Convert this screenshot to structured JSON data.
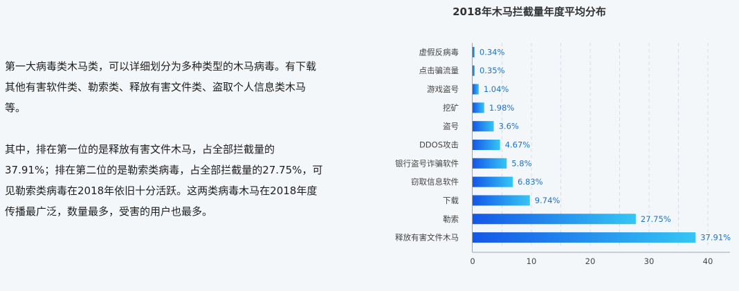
{
  "article": {
    "paragraphs": [
      "第一大病毒类木马类，可以详细划分为多种类型的木马病毒。有下载其他有害软件类、勒索类、释放有害文件类、盗取个人信息类木马等。",
      "其中，排在第一位的是释放有害文件木马，占全部拦截量的37.91%；排在第二位的是勒索类病毒，占全部拦截量的27.75%，可见勒索类病毒在2018年依旧十分活跃。这两类病毒木马在2018年度传播最广泛，数量最多，受害的用户也最多。"
    ]
  },
  "chart_data": {
    "type": "bar",
    "orientation": "horizontal",
    "title": "2018年木马拦截量年度平均分布",
    "xlabel": "",
    "ylabel": "",
    "categories": [
      "虚假反病毒",
      "点击骗流量",
      "游戏盗号",
      "挖矿",
      "盗号",
      "DDOS攻击",
      "银行盗号诈骗软件",
      "窃取信息软件",
      "下载",
      "勒索",
      "释放有害文件木马"
    ],
    "values": [
      0.34,
      0.35,
      1.04,
      1.98,
      3.6,
      4.67,
      5.8,
      6.83,
      9.74,
      27.75,
      37.91
    ],
    "value_labels": [
      "0.34%",
      "0.35%",
      "1.04%",
      "1.98%",
      "3.6%",
      "4.67%",
      "5.8%",
      "6.83%",
      "9.74%",
      "27.75%",
      "37.91%"
    ],
    "xlim": [
      0,
      42
    ],
    "xticks": [
      0,
      10,
      20,
      30,
      40
    ],
    "grid": true,
    "legend": "none",
    "colors": {
      "bar_start": "#1457e8",
      "bar_end": "#35c6f4",
      "grid": "#d6dde6",
      "axis": "#9aa4b0",
      "value_text": "#1a73c8"
    }
  }
}
